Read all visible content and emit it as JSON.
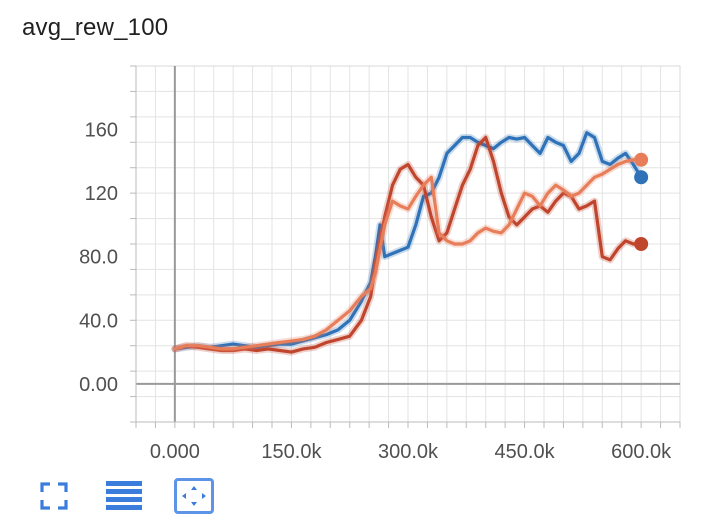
{
  "card": {
    "title": "avg_rew_100"
  },
  "toolbar": {
    "fullscreen_icon": "fullscreen-icon",
    "data_table_icon": "data-table-icon",
    "fit_domain_icon": "fit-domain-icon",
    "accent": "#3b7ddd"
  },
  "chart_data": {
    "type": "line",
    "title": "avg_rew_100",
    "xlabel": "",
    "ylabel": "",
    "xlim": [
      -50000,
      650000
    ],
    "ylim": [
      -24,
      200
    ],
    "x_ticks": [
      0,
      150000,
      300000,
      450000,
      600000
    ],
    "x_tick_labels": [
      "0.000",
      "150.0k",
      "300.0k",
      "450.0k",
      "600.0k"
    ],
    "y_ticks": [
      0,
      40,
      80,
      120,
      160
    ],
    "y_tick_labels": [
      "0.00",
      "40.0",
      "80.0",
      "120",
      "160"
    ],
    "grid": true,
    "legend": "none",
    "series": [
      {
        "color": "#2f72b8",
        "x": [
          0,
          15000,
          30000,
          45000,
          60000,
          75000,
          90000,
          105000,
          120000,
          135000,
          150000,
          165000,
          180000,
          195000,
          210000,
          225000,
          240000,
          252000,
          258000,
          264000,
          270000,
          280000,
          290000,
          300000,
          310000,
          320000,
          330000,
          340000,
          350000,
          360000,
          370000,
          380000,
          390000,
          400000,
          410000,
          420000,
          430000,
          440000,
          450000,
          460000,
          470000,
          480000,
          490000,
          500000,
          510000,
          520000,
          530000,
          540000,
          550000,
          560000,
          570000,
          580000,
          590000,
          600000
        ],
        "y": [
          22,
          23,
          24,
          23,
          24,
          25,
          24,
          23,
          24,
          25,
          25,
          27,
          29,
          31,
          34,
          40,
          52,
          64,
          80,
          100,
          80,
          82,
          84,
          86,
          100,
          118,
          120,
          130,
          145,
          150,
          155,
          155,
          152,
          150,
          148,
          152,
          155,
          154,
          155,
          150,
          145,
          155,
          152,
          150,
          140,
          145,
          158,
          155,
          140,
          138,
          142,
          145,
          138,
          130
        ]
      },
      {
        "color": "#c0452d",
        "x": [
          0,
          15000,
          30000,
          45000,
          60000,
          75000,
          90000,
          105000,
          120000,
          135000,
          150000,
          165000,
          180000,
          195000,
          210000,
          225000,
          240000,
          252000,
          258000,
          264000,
          270000,
          280000,
          290000,
          300000,
          310000,
          320000,
          330000,
          340000,
          350000,
          360000,
          370000,
          380000,
          390000,
          400000,
          410000,
          420000,
          430000,
          440000,
          450000,
          460000,
          470000,
          480000,
          490000,
          500000,
          510000,
          520000,
          530000,
          540000,
          550000,
          560000,
          570000,
          580000,
          590000,
          600000
        ],
        "y": [
          22,
          24,
          23,
          22,
          21,
          21,
          22,
          21,
          22,
          21,
          20,
          22,
          23,
          26,
          28,
          30,
          40,
          55,
          75,
          90,
          105,
          125,
          135,
          138,
          130,
          125,
          105,
          90,
          95,
          110,
          125,
          135,
          150,
          155,
          140,
          120,
          105,
          100,
          105,
          110,
          112,
          108,
          115,
          120,
          118,
          110,
          112,
          115,
          80,
          78,
          85,
          90,
          88,
          88
        ]
      },
      {
        "color": "#e87d5a",
        "x": [
          0,
          15000,
          30000,
          45000,
          60000,
          75000,
          90000,
          105000,
          120000,
          135000,
          150000,
          165000,
          180000,
          195000,
          210000,
          225000,
          240000,
          252000,
          258000,
          264000,
          270000,
          280000,
          290000,
          300000,
          310000,
          320000,
          330000,
          340000,
          350000,
          360000,
          370000,
          380000,
          390000,
          400000,
          410000,
          420000,
          430000,
          440000,
          450000,
          460000,
          470000,
          480000,
          490000,
          500000,
          510000,
          520000,
          530000,
          540000,
          550000,
          560000,
          570000,
          580000,
          590000,
          600000
        ],
        "y": [
          22,
          24,
          24,
          23,
          22,
          22,
          23,
          24,
          25,
          26,
          27,
          28,
          30,
          34,
          40,
          46,
          55,
          60,
          70,
          85,
          100,
          115,
          112,
          110,
          118,
          125,
          130,
          95,
          90,
          88,
          88,
          90,
          95,
          98,
          96,
          95,
          100,
          110,
          120,
          118,
          112,
          120,
          125,
          122,
          118,
          120,
          125,
          130,
          132,
          135,
          138,
          140,
          141,
          141
        ]
      }
    ]
  }
}
